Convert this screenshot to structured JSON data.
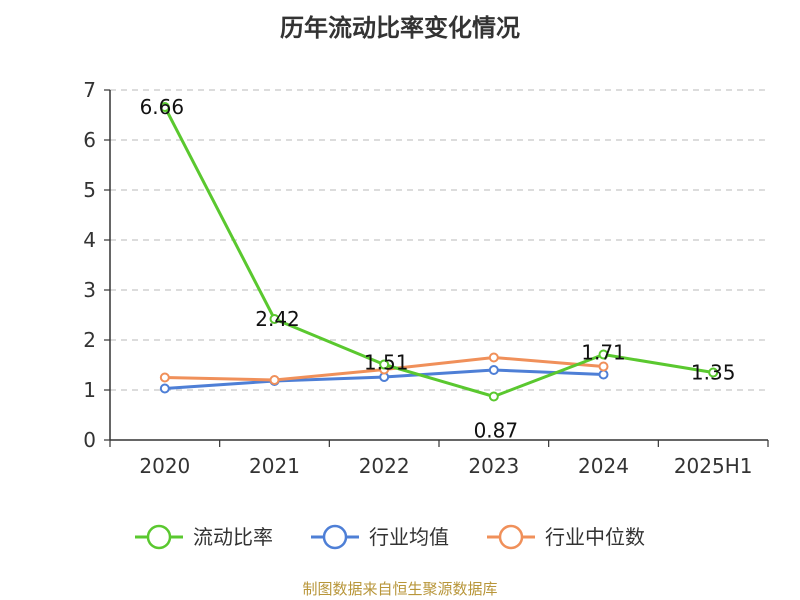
{
  "chart_data": {
    "type": "line",
    "title": "历年流动比率变化情况",
    "categories": [
      "2020",
      "2021",
      "2022",
      "2023",
      "2024",
      "2025H1"
    ],
    "yticks": [
      0,
      1,
      2,
      3,
      4,
      5,
      6,
      7
    ],
    "ylim": [
      0,
      7
    ],
    "grid": true,
    "legend_position": "bottom",
    "series": [
      {
        "name": "流动比率",
        "color": "#5ac82f",
        "values": [
          6.66,
          2.42,
          1.51,
          0.87,
          1.71,
          1.35
        ],
        "labels": [
          "6.66",
          "2.42",
          "1.51",
          "0.87",
          "1.71",
          "1.35"
        ]
      },
      {
        "name": "行业均值",
        "color": "#4e7fd6",
        "values": [
          1.03,
          1.18,
          1.26,
          1.4,
          1.31,
          null
        ]
      },
      {
        "name": "行业中位数",
        "color": "#f0905a",
        "values": [
          1.25,
          1.2,
          1.41,
          1.65,
          1.47,
          null
        ]
      }
    ]
  },
  "source": "制图数据来自恒生聚源数据库"
}
